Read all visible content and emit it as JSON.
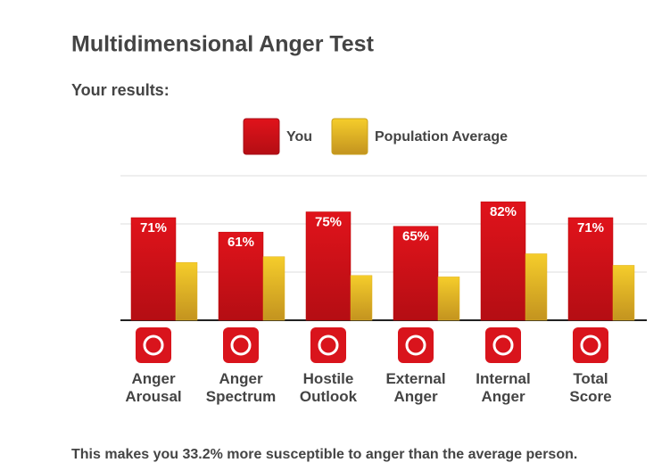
{
  "chart_data": {
    "type": "bar",
    "title": "Multidimensional Anger Test",
    "subtitle": "Your results:",
    "categories": [
      "Anger Arousal",
      "Anger Spectrum",
      "Hostile Outlook",
      "External Anger",
      "Internal Anger",
      "Total Score"
    ],
    "series": [
      {
        "name": "You",
        "color": "#e0131b",
        "values": [
          71,
          61,
          75,
          65,
          82,
          71
        ],
        "value_labels": [
          "71%",
          "61%",
          "75%",
          "65%",
          "82%",
          "71%"
        ]
      },
      {
        "name": "Population Average",
        "color": "#f5cd2b",
        "values": [
          40,
          44,
          31,
          30,
          46,
          38
        ]
      }
    ],
    "ylim": [
      0,
      100
    ],
    "yticks": [
      0,
      33.3,
      66.7,
      100
    ],
    "grid": true,
    "footnote": "This makes you 33.2% more susceptible to anger than the average person."
  }
}
